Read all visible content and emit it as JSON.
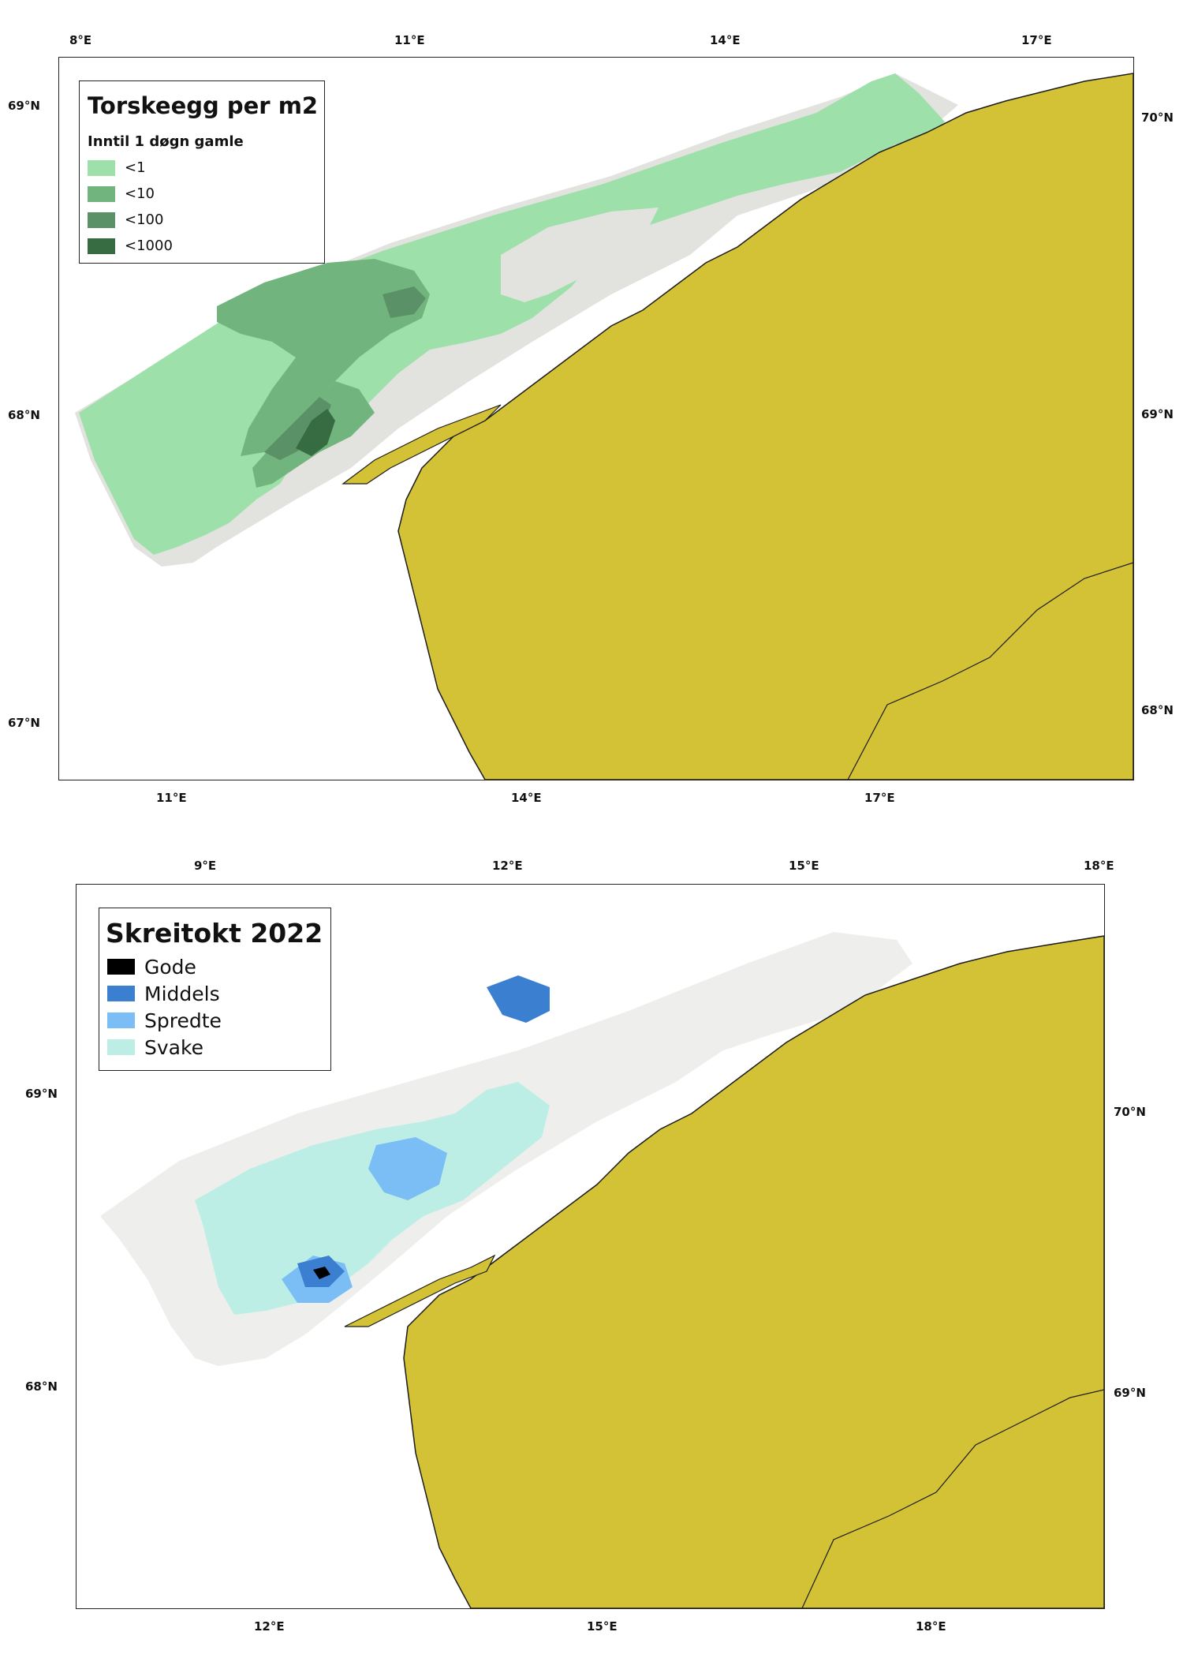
{
  "map_top": {
    "legend_title": "Torskeegg per m2",
    "legend_subtitle": "Inntil 1 døgn gamle",
    "legend_items": [
      {
        "label": "<1",
        "color": "#9ee0a9"
      },
      {
        "label": "<10",
        "color": "#72b47d"
      },
      {
        "label": "<100",
        "color": "#5a9166"
      },
      {
        "label": "<1000",
        "color": "#376b42"
      }
    ],
    "top_lon_labels": [
      "8°E",
      "11°E",
      "14°E",
      "17°E"
    ],
    "bottom_lon_labels": [
      "11°E",
      "14°E",
      "17°E"
    ],
    "left_lat_labels": [
      "69°N",
      "68°N",
      "67°N"
    ],
    "right_lat_labels": [
      "70°N",
      "69°N",
      "68°N"
    ]
  },
  "map_bottom": {
    "legend_title": "Skreitokt 2022",
    "legend_items": [
      {
        "label": "Gode",
        "color": "#000000"
      },
      {
        "label": "Middels",
        "color": "#3b7fd0"
      },
      {
        "label": "Spredte",
        "color": "#7bbdf5"
      },
      {
        "label": "Svake",
        "color": "#bdeee6"
      }
    ],
    "top_lon_labels": [
      "9°E",
      "12°E",
      "15°E",
      "18°E"
    ],
    "bottom_lon_labels": [
      "12°E",
      "15°E",
      "18°E"
    ],
    "left_lat_labels": [
      "69°N",
      "68°N"
    ],
    "right_lat_labels": [
      "70°N",
      "69°N"
    ]
  },
  "colors": {
    "land": "#d4c236",
    "survey_area": "#e2e2df",
    "coast_line": "#1b1b1b"
  }
}
